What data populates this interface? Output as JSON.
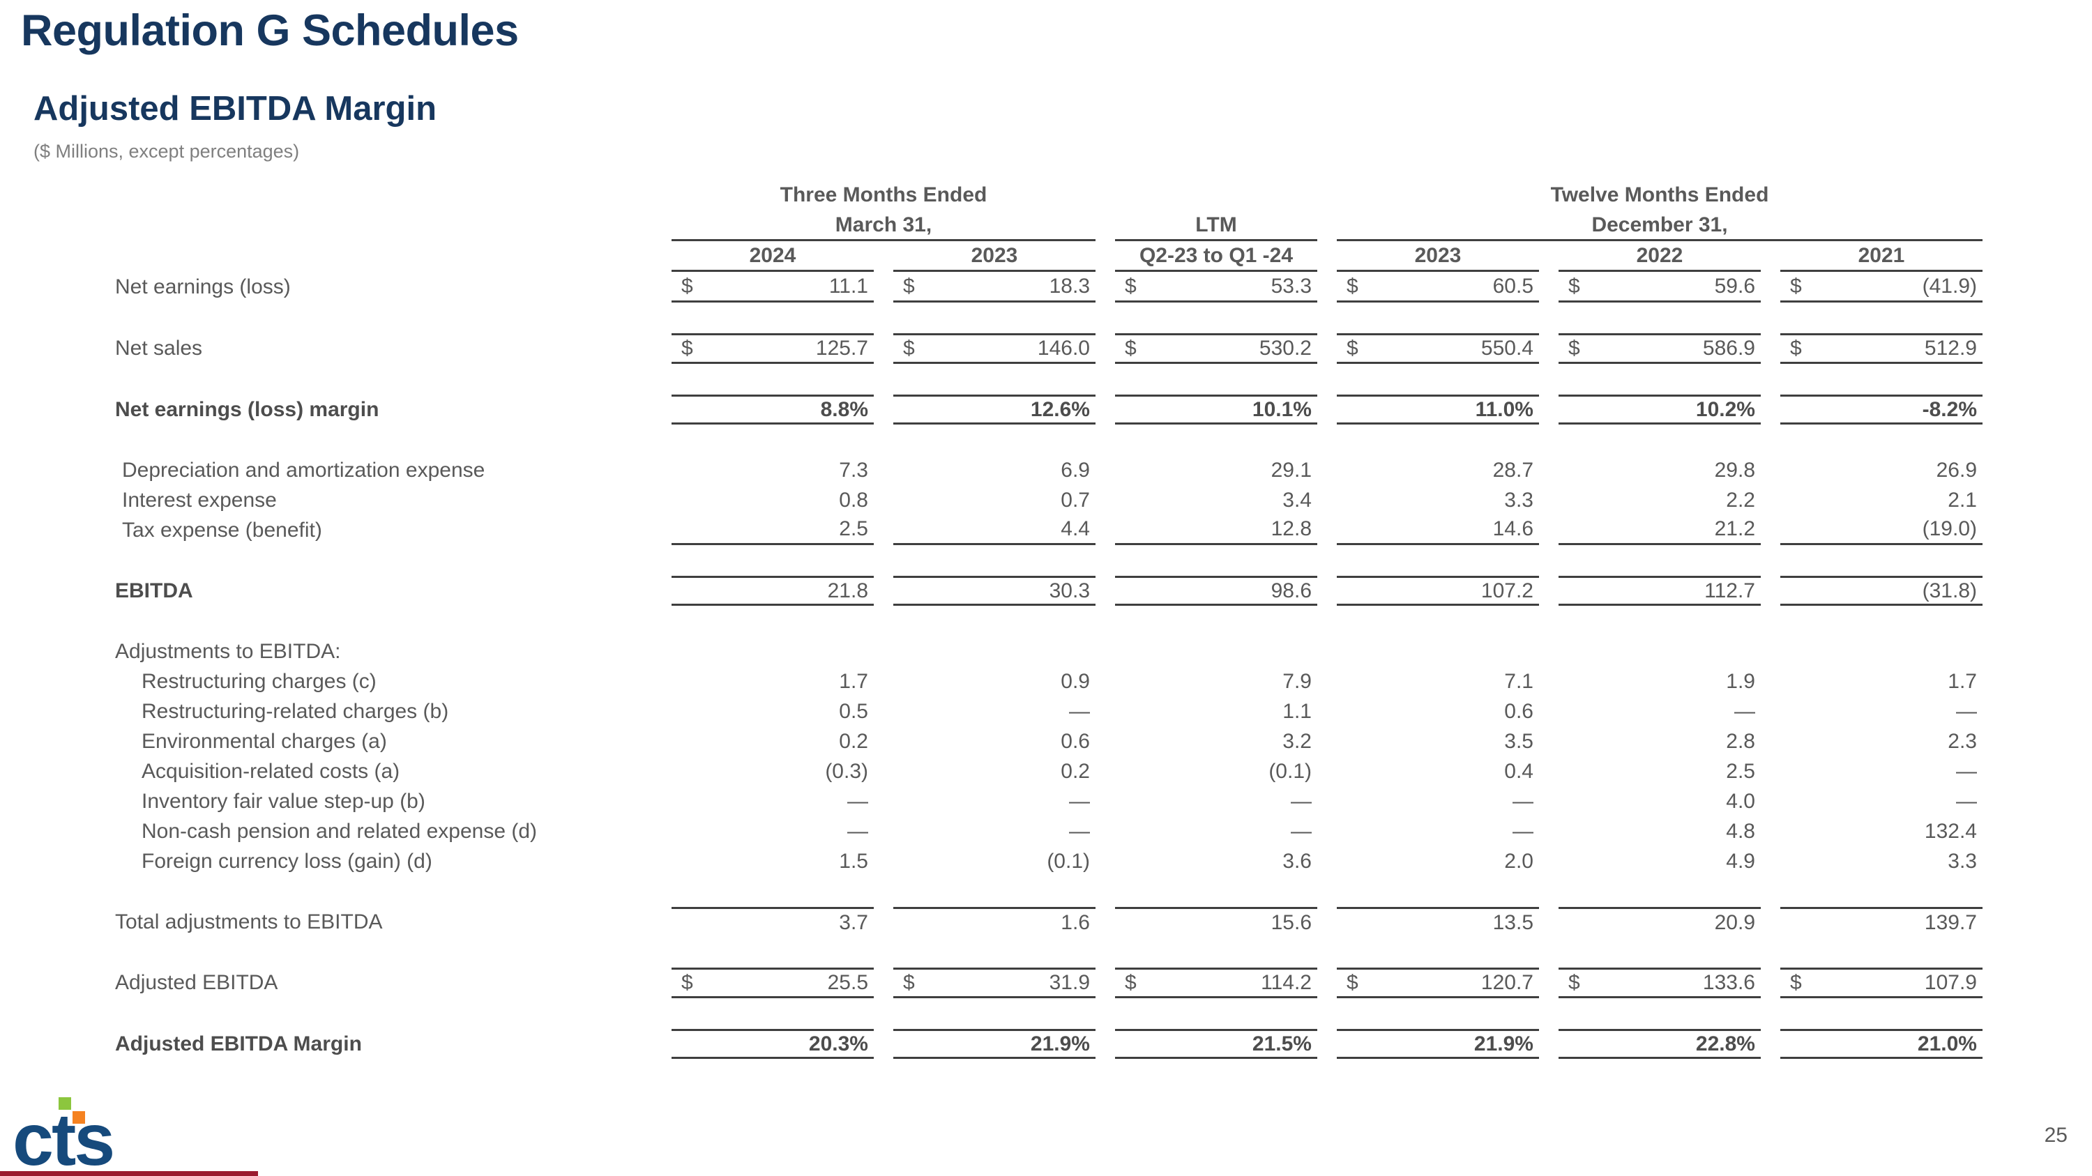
{
  "page": {
    "title": "Regulation G Schedules",
    "subtitle": "Adjusted EBITDA Margin",
    "caption": "($ Millions, except percentages)",
    "page_number": "25",
    "logo_text": "cts"
  },
  "colors": {
    "title_navy": "#17375E",
    "body_gray": "#595959",
    "caption_gray": "#7f7f7f",
    "rule_gray": "#3f3f3f",
    "logo_navy": "#164a7c",
    "logo_green": "#8CC63E",
    "logo_orange": "#F58220",
    "footer_red": "#9b1b2f"
  },
  "table": {
    "groups": [
      {
        "line1": "Three Months Ended",
        "line2": "March 31,",
        "span": 2
      },
      {
        "line1": "",
        "line2": "LTM",
        "span": 1
      },
      {
        "line1": "Twelve Months Ended",
        "line2": "December 31,",
        "span": 3
      }
    ],
    "columns": [
      "2024",
      "2023",
      "Q2-23 to Q1 -24",
      "2023",
      "2022",
      "2021"
    ],
    "rows": [
      {
        "label": "Net earnings (loss)",
        "type": "money",
        "borders": "b",
        "indent": 0,
        "values": [
          "11.1",
          "18.3",
          "53.3",
          "60.5",
          "59.6",
          "(41.9)"
        ]
      },
      {
        "label": "Net sales",
        "type": "money",
        "borders": "tb",
        "indent": 0,
        "gap_before": true,
        "values": [
          "125.7",
          "146.0",
          "530.2",
          "550.4",
          "586.9",
          "512.9"
        ]
      },
      {
        "label": "Net earnings (loss) margin",
        "type": "num",
        "borders": "tb",
        "indent": 0,
        "bold_label": true,
        "bold_values": true,
        "gap_before": true,
        "values": [
          "8.8%",
          "12.6%",
          "10.1%",
          "11.0%",
          "10.2%",
          "-8.2%"
        ]
      },
      {
        "label": "Depreciation and amortization expense",
        "type": "num",
        "borders": "",
        "indent": 1,
        "gap_before": true,
        "values": [
          "7.3",
          "6.9",
          "29.1",
          "28.7",
          "29.8",
          "26.9"
        ]
      },
      {
        "label": "Interest expense",
        "type": "num",
        "borders": "",
        "indent": 1,
        "values": [
          "0.8",
          "0.7",
          "3.4",
          "3.3",
          "2.2",
          "2.1"
        ]
      },
      {
        "label": "Tax expense (benefit)",
        "type": "num",
        "borders": "b",
        "indent": 1,
        "values": [
          "2.5",
          "4.4",
          "12.8",
          "14.6",
          "21.2",
          "(19.0)"
        ]
      },
      {
        "label": "EBITDA",
        "type": "num",
        "borders": "tb",
        "indent": 0,
        "bold_label": true,
        "gap_before": true,
        "values": [
          "21.8",
          "30.3",
          "98.6",
          "107.2",
          "112.7",
          "(31.8)"
        ]
      },
      {
        "label": "Adjustments to EBITDA:",
        "type": "none",
        "borders": "",
        "indent": 0,
        "gap_before": true,
        "values": [
          "",
          "",
          "",
          "",
          "",
          ""
        ]
      },
      {
        "label": "Restructuring charges (c)",
        "type": "num",
        "borders": "",
        "indent": 2,
        "values": [
          "1.7",
          "0.9",
          "7.9",
          "7.1",
          "1.9",
          "1.7"
        ]
      },
      {
        "label": "Restructuring-related charges (b)",
        "type": "num",
        "borders": "",
        "indent": 2,
        "values": [
          "0.5",
          "—",
          "1.1",
          "0.6",
          "—",
          "—"
        ]
      },
      {
        "label": "Environmental charges (a)",
        "type": "num",
        "borders": "",
        "indent": 2,
        "values": [
          "0.2",
          "0.6",
          "3.2",
          "3.5",
          "2.8",
          "2.3"
        ]
      },
      {
        "label": "Acquisition-related costs (a)",
        "type": "num",
        "borders": "",
        "indent": 2,
        "values": [
          "(0.3)",
          "0.2",
          "(0.1)",
          "0.4",
          "2.5",
          "—"
        ]
      },
      {
        "label": "Inventory fair value step-up (b)",
        "type": "num",
        "borders": "",
        "indent": 2,
        "values": [
          "—",
          "—",
          "—",
          "—",
          "4.0",
          "—"
        ]
      },
      {
        "label": "Non-cash pension and related expense (d)",
        "type": "num",
        "borders": "",
        "indent": 2,
        "values": [
          "—",
          "—",
          "—",
          "—",
          "4.8",
          "132.4"
        ]
      },
      {
        "label": "Foreign currency loss (gain) (d)",
        "type": "num",
        "borders": "",
        "indent": 2,
        "values": [
          "1.5",
          "(0.1)",
          "3.6",
          "2.0",
          "4.9",
          "3.3"
        ]
      },
      {
        "label": "Total adjustments to EBITDA",
        "type": "num",
        "borders": "t",
        "indent": 0,
        "gap_before": true,
        "values": [
          "3.7",
          "1.6",
          "15.6",
          "13.5",
          "20.9",
          "139.7"
        ]
      },
      {
        "label": "Adjusted EBITDA",
        "type": "money",
        "borders": "tb",
        "indent": 0,
        "gap_before": true,
        "values": [
          "25.5",
          "31.9",
          "114.2",
          "120.7",
          "133.6",
          "107.9"
        ]
      },
      {
        "label": "Adjusted EBITDA Margin",
        "type": "num",
        "borders": "tb",
        "indent": 0,
        "bold_label": true,
        "bold_values": true,
        "gap_before": true,
        "values": [
          "20.3%",
          "21.9%",
          "21.5%",
          "21.9%",
          "22.8%",
          "21.0%"
        ]
      }
    ]
  }
}
